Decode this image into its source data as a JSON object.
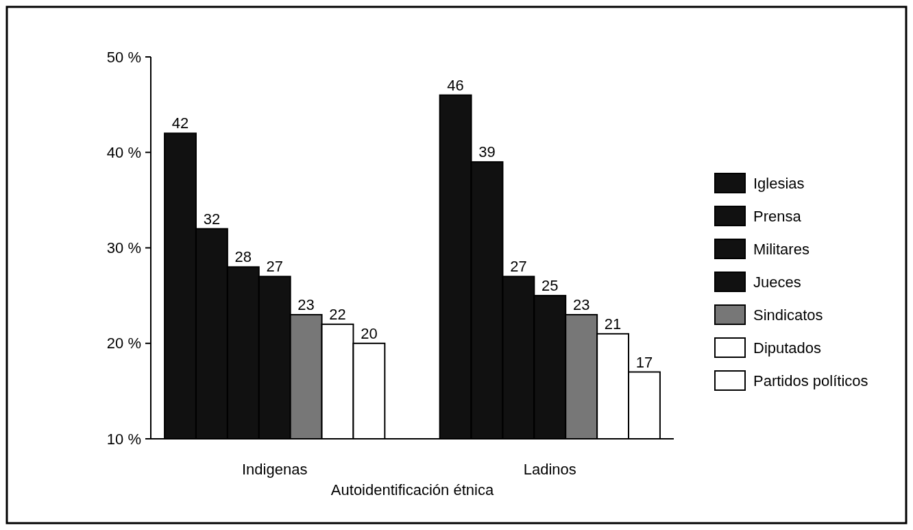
{
  "chart_data": {
    "type": "bar",
    "xlabel": "Autoidentificación étnica",
    "categories": [
      "Indigenas",
      "Ladinos"
    ],
    "series": [
      {
        "name": "Iglesias",
        "color": "#111111",
        "values": [
          42,
          46
        ]
      },
      {
        "name": "Prensa",
        "color": "#111111",
        "values": [
          32,
          39
        ]
      },
      {
        "name": "Militares",
        "color": "#111111",
        "values": [
          28,
          27
        ]
      },
      {
        "name": "Jueces",
        "color": "#111111",
        "values": [
          27,
          25
        ]
      },
      {
        "name": "Sindicatos",
        "color": "#777777",
        "values": [
          23,
          23
        ]
      },
      {
        "name": "Diputados",
        "color": "#ffffff",
        "values": [
          22,
          21
        ]
      },
      {
        "name": "Partidos políticos",
        "color": "#ffffff",
        "values": [
          20,
          17
        ]
      }
    ],
    "ylim": [
      10,
      50
    ],
    "yticks": [
      {
        "value": 10,
        "label": "10 %"
      },
      {
        "value": 20,
        "label": "20 %"
      },
      {
        "value": 30,
        "label": "30 %"
      },
      {
        "value": 40,
        "label": "40 %"
      },
      {
        "value": 50,
        "label": "50 %"
      }
    ],
    "data_labels": true,
    "legend": "right",
    "grid": false
  }
}
